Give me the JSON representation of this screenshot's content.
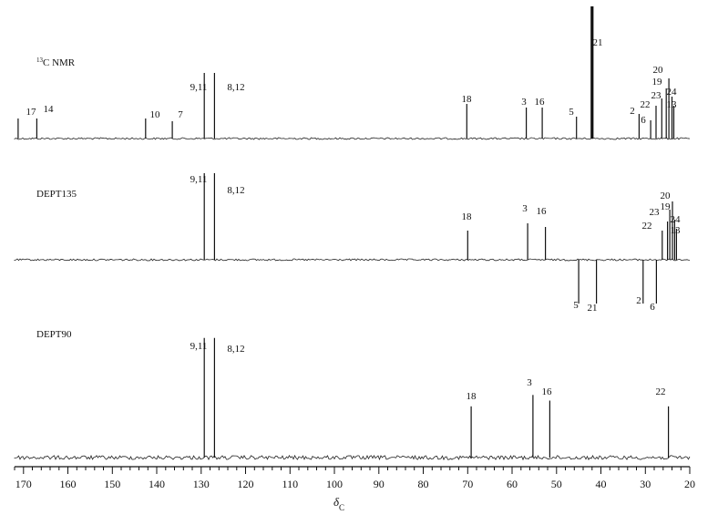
{
  "chart_data": {
    "type": "line",
    "x_axis": {
      "range": [
        172,
        20
      ],
      "reversed": true,
      "ticks": [
        170,
        160,
        150,
        140,
        130,
        120,
        110,
        100,
        90,
        80,
        70,
        60,
        50,
        40,
        30,
        20
      ],
      "tick_labels": [
        "170",
        "160",
        "150",
        "140",
        "130",
        "120",
        "110",
        "100",
        "90",
        "80",
        "70",
        "60",
        "50",
        "40",
        "30",
        "20"
      ],
      "label_main": "δ",
      "label_sub": "C"
    },
    "grid": false,
    "spectra": [
      {
        "name_pre": "13",
        "name": "C NMR",
        "peaks": [
          {
            "label": "17",
            "shift": 171.2,
            "intensity": 0.22
          },
          {
            "label": "14",
            "shift": 167.0,
            "intensity": 0.22
          },
          {
            "label": "10",
            "shift": 142.5,
            "intensity": 0.22
          },
          {
            "label": "7",
            "shift": 136.5,
            "intensity": 0.19
          },
          {
            "label": "9,11",
            "shift": 129.3,
            "intensity": 0.72
          },
          {
            "label": "8,12",
            "shift": 127.0,
            "intensity": 0.72
          },
          {
            "label": "18",
            "shift": 70.2,
            "intensity": 0.38
          },
          {
            "label": "3",
            "shift": 56.8,
            "intensity": 0.34
          },
          {
            "label": "16",
            "shift": 53.2,
            "intensity": 0.34
          },
          {
            "label": "5",
            "shift": 45.5,
            "intensity": 0.24
          },
          {
            "label": "21",
            "shift": 42.0,
            "intensity": 1.45
          },
          {
            "label": "2",
            "shift": 31.4,
            "intensity": 0.27
          },
          {
            "label": "6",
            "shift": 28.8,
            "intensity": 0.2
          },
          {
            "label": "22",
            "shift": 27.6,
            "intensity": 0.36
          },
          {
            "label": "23",
            "shift": 26.3,
            "intensity": 0.44
          },
          {
            "label": "19",
            "shift": 25.3,
            "intensity": 0.55
          },
          {
            "label": "20",
            "shift": 24.7,
            "intensity": 0.66
          },
          {
            "label": "24",
            "shift": 24.0,
            "intensity": 0.46
          },
          {
            "label": "13",
            "shift": 23.6,
            "intensity": 0.36
          }
        ]
      },
      {
        "name": "DEPT135",
        "peaks": [
          {
            "label": "9,11",
            "shift": 129.3,
            "intensity": 0.95
          },
          {
            "label": "8,12",
            "shift": 127.0,
            "intensity": 0.95
          },
          {
            "label": "18",
            "shift": 70.0,
            "intensity": 0.32
          },
          {
            "label": "3",
            "shift": 56.5,
            "intensity": 0.4
          },
          {
            "label": "16",
            "shift": 52.5,
            "intensity": 0.36
          },
          {
            "label": "5",
            "shift": 45.0,
            "intensity": -0.48
          },
          {
            "label": "21",
            "shift": 41.0,
            "intensity": -0.48
          },
          {
            "label": "2",
            "shift": 30.5,
            "intensity": -0.48
          },
          {
            "label": "6",
            "shift": 27.5,
            "intensity": -0.48
          },
          {
            "label": "22",
            "shift": 26.2,
            "intensity": 0.32
          },
          {
            "label": "23",
            "shift": 25.0,
            "intensity": 0.42
          },
          {
            "label": "19",
            "shift": 24.5,
            "intensity": 0.55
          },
          {
            "label": "20",
            "shift": 23.9,
            "intensity": 0.64
          },
          {
            "label": "24",
            "shift": 23.4,
            "intensity": 0.44
          },
          {
            "label": "13",
            "shift": 23.0,
            "intensity": 0.34
          }
        ]
      },
      {
        "name": "DEPT90",
        "peaks": [
          {
            "label": "9,11",
            "shift": 129.3,
            "intensity": 1.05
          },
          {
            "label": "8,12",
            "shift": 127.0,
            "intensity": 1.05
          },
          {
            "label": "18",
            "shift": 69.2,
            "intensity": 0.45
          },
          {
            "label": "3",
            "shift": 55.3,
            "intensity": 0.55
          },
          {
            "label": "16",
            "shift": 51.5,
            "intensity": 0.5
          },
          {
            "label": "22",
            "shift": 24.8,
            "intensity": 0.45
          }
        ]
      }
    ]
  }
}
